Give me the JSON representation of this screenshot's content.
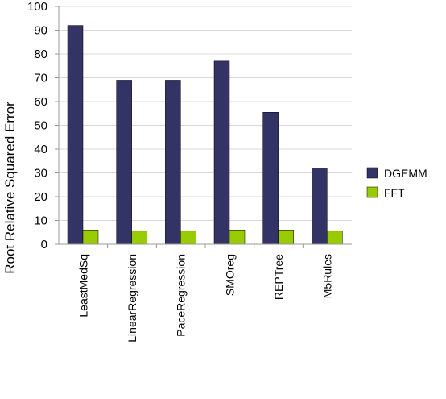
{
  "chart_data": {
    "type": "bar",
    "title": "",
    "xlabel": "",
    "ylabel": "Root Relative Squared Error",
    "ylim": [
      0,
      100
    ],
    "yticks": [
      0,
      10,
      20,
      30,
      40,
      50,
      60,
      70,
      80,
      90,
      100
    ],
    "grid": true,
    "legend_position": "right",
    "categories": [
      "LeastMedSq",
      "LinearRegression",
      "PaceRegression",
      "SMOreg",
      "REPTree",
      "M5Rules"
    ],
    "series": [
      {
        "name": "DGEMM",
        "color": "#333366",
        "values": [
          92,
          69,
          69,
          77,
          55.5,
          32
        ]
      },
      {
        "name": "FFT",
        "color": "#99cc00",
        "values": [
          6,
          5.5,
          5.5,
          6,
          6,
          5.5
        ]
      }
    ]
  }
}
